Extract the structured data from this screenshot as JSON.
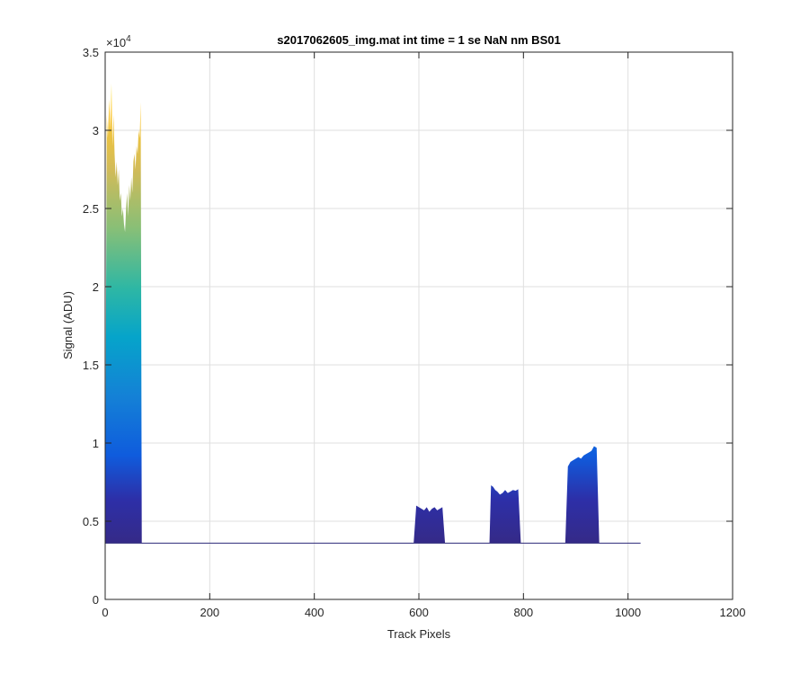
{
  "chart_data": {
    "type": "area",
    "title": "s2017062605_img.mat int time = 1 se  NaN nm BS01",
    "xlabel": "Track Pixels",
    "ylabel": "Signal (ADU)",
    "xlim": [
      0,
      1200
    ],
    "ylim": [
      0,
      35000
    ],
    "xticks": [
      0,
      200,
      400,
      600,
      800,
      1000,
      1200
    ],
    "xtick_labels": [
      "0",
      "200",
      "400",
      "600",
      "800",
      "1000",
      "1200"
    ],
    "yticks": [
      0,
      5000,
      10000,
      15000,
      20000,
      25000,
      30000,
      35000
    ],
    "ytick_labels": [
      "0",
      "0.5",
      "1",
      "1.5",
      "2",
      "2.5",
      "3",
      "3.5"
    ],
    "y_exponent": "×10^4",
    "y_exponent_base": "×10",
    "y_exponent_power": "4",
    "grid": true,
    "baseline": 3600,
    "colormap": [
      "#352a87",
      "#0f5cdd",
      "#1481d6",
      "#06a4ca",
      "#2eb7a4",
      "#87bf77",
      "#d1bb59",
      "#fec832",
      "#f9fb0e"
    ],
    "x": [
      0,
      3,
      5,
      8,
      10,
      12,
      14,
      16,
      18,
      20,
      22,
      24,
      26,
      28,
      30,
      32,
      34,
      36,
      38,
      40,
      42,
      44,
      46,
      48,
      50,
      52,
      54,
      56,
      58,
      60,
      62,
      64,
      66,
      68,
      70,
      80,
      590,
      595,
      600,
      605,
      610,
      615,
      620,
      625,
      630,
      635,
      640,
      645,
      650,
      655,
      735,
      738,
      742,
      746,
      750,
      755,
      760,
      765,
      770,
      775,
      780,
      785,
      790,
      795,
      800,
      880,
      885,
      890,
      895,
      900,
      905,
      910,
      915,
      920,
      925,
      930,
      935,
      940,
      945,
      1024
    ],
    "y": [
      3600,
      31000,
      29500,
      32000,
      30000,
      33000,
      29000,
      31000,
      28500,
      27000,
      28000,
      26500,
      27500,
      25500,
      26000,
      24500,
      25000,
      24000,
      23500,
      25000,
      26000,
      24500,
      26500,
      25500,
      27000,
      26000,
      28000,
      28500,
      27500,
      29000,
      28500,
      30000,
      29500,
      31800,
      3600,
      3600,
      3600,
      6000,
      5900,
      5800,
      5700,
      5900,
      5600,
      5800,
      5900,
      5700,
      5800,
      5900,
      3600,
      3600,
      3600,
      7300,
      7200,
      7000,
      6900,
      6700,
      6800,
      7000,
      6800,
      6900,
      7000,
      6950,
      7050,
      3600,
      3600,
      3600,
      8500,
      8800,
      8900,
      9000,
      9100,
      9000,
      9200,
      9300,
      9400,
      9500,
      9800,
      9700,
      3600,
      3600
    ]
  }
}
